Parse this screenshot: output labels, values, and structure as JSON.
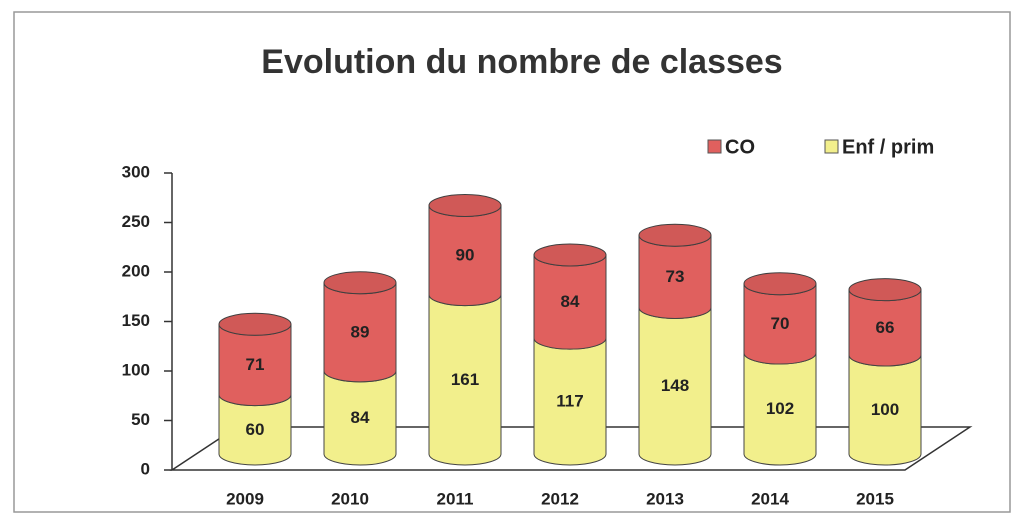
{
  "chart_data": {
    "type": "bar",
    "stacked": true,
    "title": "Evolution du nombre de classes",
    "categories": [
      "2009",
      "2010",
      "2011",
      "2012",
      "2013",
      "2014",
      "2015"
    ],
    "series": [
      {
        "name": "Enf / prim",
        "color": "#f2ef8c",
        "values": [
          60,
          84,
          161,
          117,
          148,
          102,
          100
        ]
      },
      {
        "name": "CO",
        "color": "#e0605e",
        "values": [
          71,
          89,
          90,
          84,
          73,
          70,
          66
        ]
      }
    ],
    "legend": "top-right",
    "ylim": [
      0,
      300
    ],
    "yticks": [
      0,
      50,
      100,
      150,
      200,
      250,
      300
    ]
  }
}
